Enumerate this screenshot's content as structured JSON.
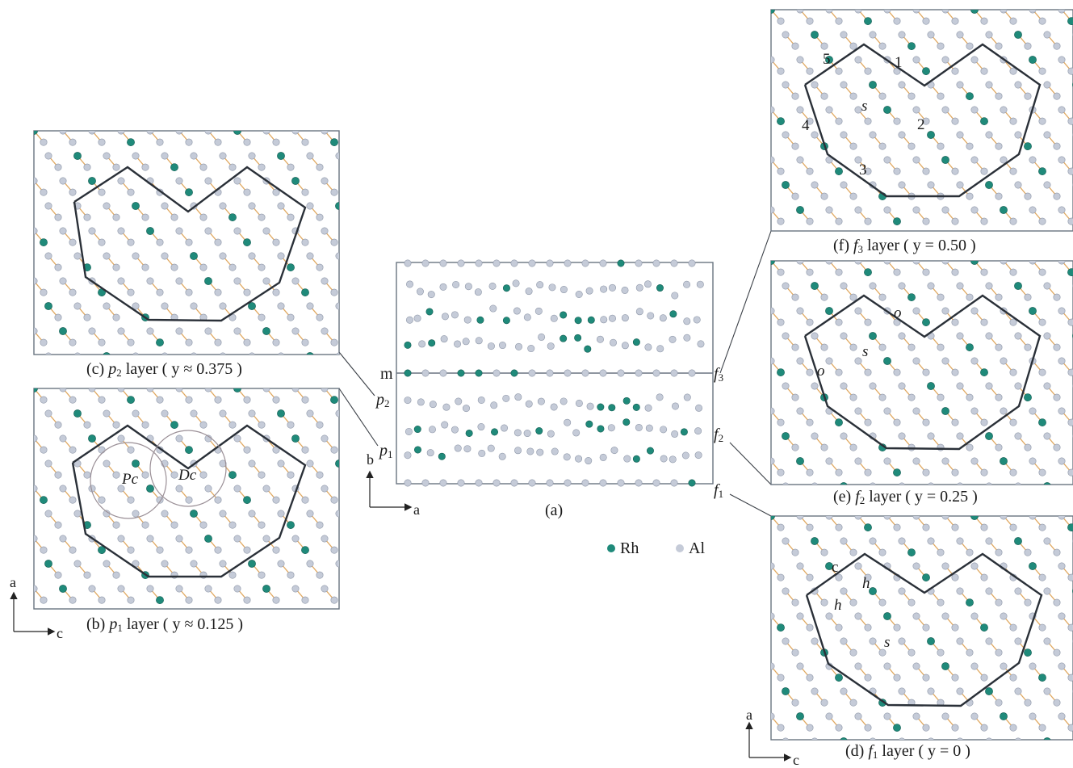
{
  "colors": {
    "rh": "#1f8a7a",
    "al": "#c5cbd8",
    "bond": "#e0a860",
    "outline": "#2a3038",
    "frame": "#6a7480"
  },
  "legend": {
    "rh": "Rh",
    "al": "Al"
  },
  "captions": {
    "a": "(a)",
    "b": {
      "pre": "(b) ",
      "sym": "p",
      "sub": "1",
      "post": " layer ( y ≈ 0.125 )"
    },
    "c": {
      "pre": "(c) ",
      "sym": "p",
      "sub": "2",
      "post": " layer ( y ≈ 0.375 )"
    },
    "d": {
      "pre": "(d) ",
      "sym": "f",
      "sub": "1",
      "post": " layer ( y = 0 )"
    },
    "e": {
      "pre": "(e) ",
      "sym": "f",
      "sub": "2",
      "post": " layer ( y = 0.25 )"
    },
    "f": {
      "pre": "(f) ",
      "sym": "f",
      "sub": "3",
      "post": " layer ( y = 0.50 )"
    }
  },
  "layer_labels": {
    "m": "m",
    "p2": {
      "sym": "p",
      "sub": "2"
    },
    "p1": {
      "sym": "p",
      "sub": "1"
    },
    "f3": {
      "sym": "f",
      "sub": "3"
    },
    "f2": {
      "sym": "f",
      "sub": "2"
    },
    "f1": {
      "sym": "f",
      "sub": "1"
    }
  },
  "axes": {
    "center": {
      "up": "b",
      "right": "a"
    },
    "left": {
      "up": "a",
      "right": "c"
    },
    "right": {
      "up": "a",
      "right": "c"
    }
  },
  "markers": {
    "b": {
      "pc": "Pc",
      "dc": "Dc"
    },
    "d": {
      "c": "c",
      "h1": "h",
      "h2": "h",
      "s": "s"
    },
    "e": {
      "o1": "o",
      "o2": "o",
      "s": "s"
    },
    "f": {
      "n1": "1",
      "n2": "2",
      "n3": "3",
      "n4": "4",
      "n5": "5",
      "s": "s"
    }
  }
}
